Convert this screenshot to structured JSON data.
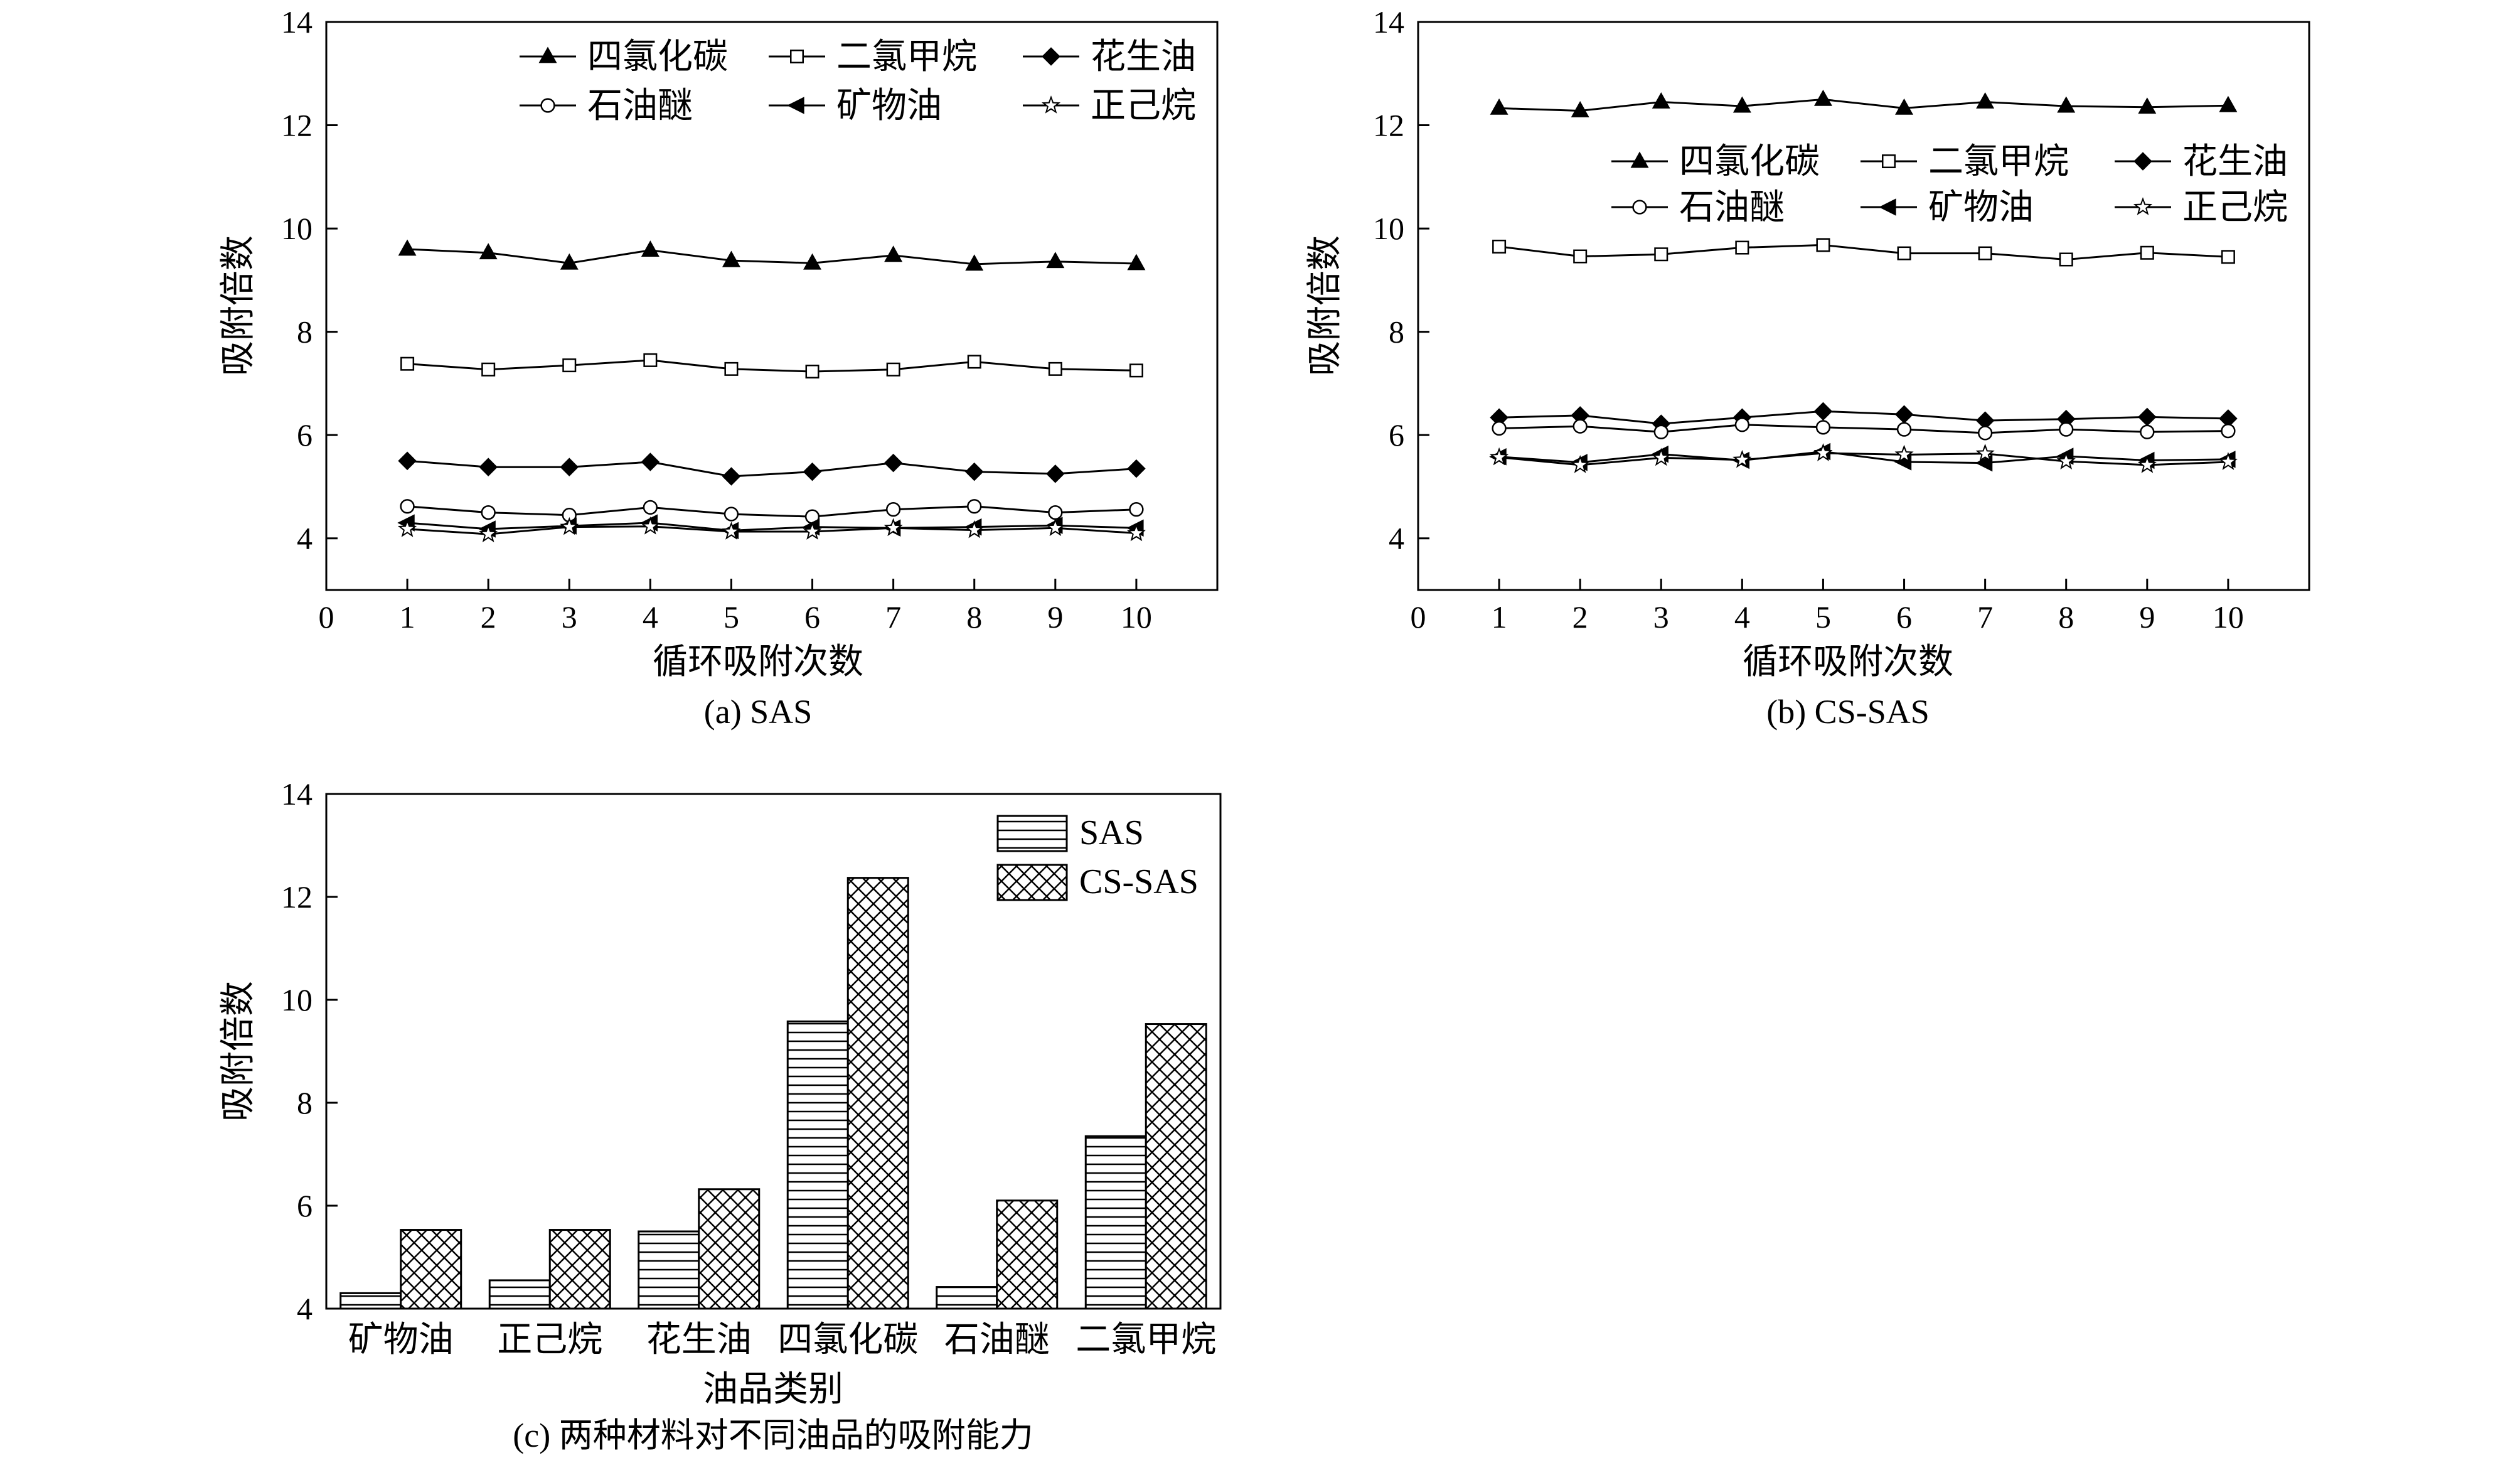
{
  "chart_data": [
    {
      "id": "a",
      "type": "line",
      "caption": "(a) SAS",
      "xlabel": "循环吸附次数",
      "ylabel": "吸附倍数",
      "xlim": [
        0,
        11
      ],
      "ylim": [
        3,
        14
      ],
      "xticks": [
        0,
        1,
        2,
        3,
        4,
        5,
        6,
        7,
        8,
        9,
        10
      ],
      "yticks": [
        4,
        6,
        8,
        10,
        12,
        14
      ],
      "legend_position": "top",
      "x": [
        1,
        2,
        3,
        4,
        5,
        6,
        7,
        8,
        9,
        10
      ],
      "series": [
        {
          "name": "四氯化碳",
          "marker": "triangle-up-filled",
          "values": [
            9.6,
            9.53,
            9.33,
            9.58,
            9.38,
            9.33,
            9.48,
            9.31,
            9.36,
            9.32
          ]
        },
        {
          "name": "二氯甲烷",
          "marker": "square-open",
          "values": [
            7.38,
            7.27,
            7.35,
            7.45,
            7.28,
            7.23,
            7.27,
            7.42,
            7.28,
            7.25
          ]
        },
        {
          "name": "花生油",
          "marker": "diamond-filled",
          "values": [
            5.5,
            5.38,
            5.38,
            5.48,
            5.2,
            5.29,
            5.46,
            5.29,
            5.25,
            5.35
          ]
        },
        {
          "name": "石油醚",
          "marker": "circle-open",
          "values": [
            4.62,
            4.5,
            4.45,
            4.6,
            4.47,
            4.42,
            4.56,
            4.62,
            4.5,
            4.56
          ]
        },
        {
          "name": "矿物油",
          "marker": "triangle-left-filled",
          "values": [
            4.3,
            4.18,
            4.24,
            4.3,
            4.15,
            4.22,
            4.2,
            4.22,
            4.25,
            4.2
          ]
        },
        {
          "name": "正己烷",
          "marker": "star-open",
          "values": [
            4.18,
            4.08,
            4.22,
            4.23,
            4.13,
            4.13,
            4.2,
            4.16,
            4.2,
            4.1
          ]
        }
      ]
    },
    {
      "id": "b",
      "type": "line",
      "caption": "(b) CS-SAS",
      "xlabel": "循环吸附次数",
      "ylabel": "吸附倍数",
      "xlim": [
        0,
        11
      ],
      "ylim": [
        3,
        14
      ],
      "xticks": [
        0,
        1,
        2,
        3,
        4,
        5,
        6,
        7,
        8,
        9,
        10
      ],
      "yticks": [
        4,
        6,
        8,
        10,
        12,
        14
      ],
      "legend_position": "upper-middle",
      "x": [
        1,
        2,
        3,
        4,
        5,
        6,
        7,
        8,
        9,
        10
      ],
      "series": [
        {
          "name": "四氯化碳",
          "marker": "triangle-up-filled",
          "values": [
            12.33,
            12.28,
            12.45,
            12.37,
            12.5,
            12.33,
            12.45,
            12.37,
            12.35,
            12.38
          ]
        },
        {
          "name": "二氯甲烷",
          "marker": "square-open",
          "values": [
            9.65,
            9.46,
            9.5,
            9.63,
            9.68,
            9.52,
            9.52,
            9.4,
            9.53,
            9.45
          ]
        },
        {
          "name": "花生油",
          "marker": "diamond-filled",
          "values": [
            6.34,
            6.38,
            6.22,
            6.34,
            6.46,
            6.4,
            6.28,
            6.31,
            6.35,
            6.32
          ]
        },
        {
          "name": "石油醚",
          "marker": "circle-open",
          "values": [
            6.13,
            6.17,
            6.06,
            6.2,
            6.15,
            6.11,
            6.04,
            6.11,
            6.06,
            6.08
          ]
        },
        {
          "name": "矿物油",
          "marker": "triangle-left-filled",
          "values": [
            5.58,
            5.47,
            5.63,
            5.51,
            5.68,
            5.48,
            5.46,
            5.59,
            5.51,
            5.53
          ]
        },
        {
          "name": "正己烷",
          "marker": "star-open",
          "values": [
            5.57,
            5.42,
            5.56,
            5.52,
            5.65,
            5.62,
            5.64,
            5.49,
            5.42,
            5.48
          ]
        }
      ]
    },
    {
      "id": "c",
      "type": "bar",
      "caption": "(c) 两种材料对不同油品的吸附能力",
      "xlabel": "油品类别",
      "ylabel": "吸附倍数",
      "ylim": [
        4,
        14
      ],
      "yticks": [
        4,
        6,
        8,
        10,
        12,
        14
      ],
      "legend_position": "top-right",
      "categories": [
        "矿物油",
        "正己烷",
        "花生油",
        "四氯化碳",
        "石油醚",
        "二氯甲烷"
      ],
      "series": [
        {
          "name": "SAS",
          "pattern": "horizontal-lines",
          "values": [
            4.3,
            4.55,
            5.5,
            9.58,
            4.42,
            7.35
          ]
        },
        {
          "name": "CS-SAS",
          "pattern": "crosshatch",
          "values": [
            5.53,
            5.53,
            6.32,
            12.37,
            6.1,
            9.53
          ]
        }
      ]
    }
  ]
}
